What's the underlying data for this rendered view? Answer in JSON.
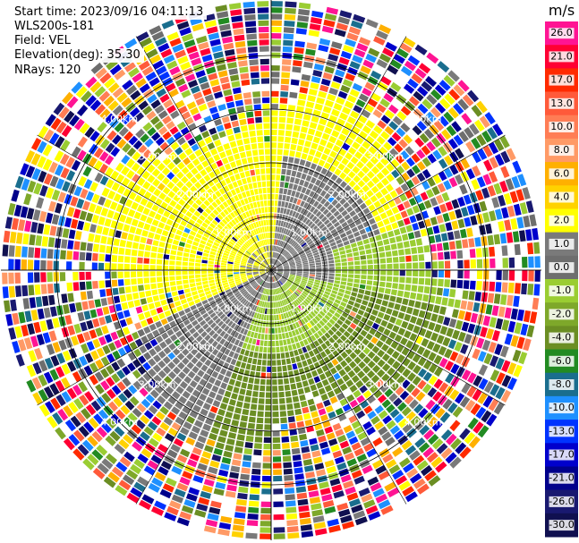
{
  "header": {
    "start_time": "Start time: 2023/09/16 04:11:13",
    "device": "WLS200s-181",
    "field": "Field: VEL",
    "elevation": "Elevation(deg): 35.30",
    "nrays": "NRays: 120"
  },
  "chart_data": {
    "type": "heatmap",
    "projection": "polar-ppi",
    "field": "VEL",
    "units": "m/s",
    "nrays": 120,
    "elevation_deg": 35.3,
    "range_rings_km": [
      1.0,
      2.0,
      3.0,
      4.0
    ],
    "ring_label_text": {
      "1": "1.00km",
      "2": "2.00km",
      "3": "3.00km",
      "4": "4.00km"
    },
    "colorbar": {
      "unit_label": "m/s",
      "ticks": [
        "26.0",
        "21.0",
        "17.0",
        "13.0",
        "10.0",
        "8.0",
        "6.0",
        "4.0",
        "2.0",
        "1.0",
        "0.0",
        "-1.0",
        "-2.0",
        "-4.0",
        "-6.0",
        "-8.0",
        "-10.0",
        "-13.0",
        "-17.0",
        "-21.0",
        "-26.0",
        "-30.0"
      ],
      "colors": [
        "#ff1493",
        "#ff0033",
        "#ff2a00",
        "#ff5a3a",
        "#ff7d55",
        "#ff9a66",
        "#ffb000",
        "#ffd200",
        "#ffff00",
        "#7a7a7a",
        "#6e6e6e",
        "#9acd32",
        "#7ea82a",
        "#6b8e23",
        "#228b22",
        "#1a6e8e",
        "#1e90ff",
        "#0033ff",
        "#0000cc",
        "#00008b",
        "#191970",
        "#101050"
      ]
    }
  }
}
